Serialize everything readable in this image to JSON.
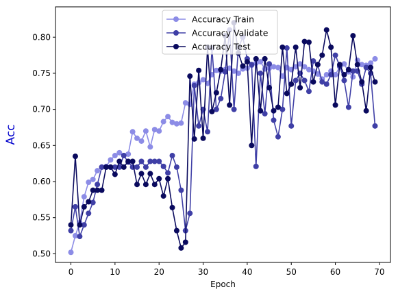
{
  "chart_data": {
    "type": "line",
    "title": "",
    "xlabel": "Epoch",
    "ylabel": "Acc",
    "xlim": [
      -3.5,
      72.5
    ],
    "ylim": [
      0.488,
      0.842
    ],
    "xticks": [
      0,
      10,
      20,
      30,
      40,
      50,
      60,
      70
    ],
    "yticks": [
      0.5,
      0.55,
      0.6,
      0.65,
      0.7,
      0.75,
      0.8
    ],
    "ytick_labels": [
      "0.50",
      "0.55",
      "0.60",
      "0.65",
      "0.70",
      "0.75",
      "0.80"
    ],
    "grid": false,
    "legend_position": "top-center",
    "ylabel_color": "#0000cc",
    "series": [
      {
        "name": "Accuracy Train",
        "color": "#8c8ce6",
        "values": [
          0.502,
          0.525,
          0.543,
          0.579,
          0.599,
          0.603,
          0.615,
          0.62,
          0.621,
          0.63,
          0.636,
          0.64,
          0.636,
          0.638,
          0.669,
          0.66,
          0.656,
          0.67,
          0.648,
          0.672,
          0.67,
          0.683,
          0.69,
          0.682,
          0.68,
          0.681,
          0.709,
          0.707,
          0.735,
          0.737,
          0.741,
          0.736,
          0.748,
          0.754,
          0.753,
          0.755,
          0.757,
          0.753,
          0.75,
          0.756,
          0.757,
          0.761,
          0.764,
          0.766,
          0.756,
          0.757,
          0.759,
          0.758,
          0.746,
          0.758,
          0.755,
          0.759,
          0.763,
          0.759,
          0.755,
          0.753,
          0.749,
          0.742,
          0.748,
          0.753,
          0.748,
          0.759,
          0.763,
          0.752,
          0.745,
          0.768,
          0.762,
          0.761,
          0.764,
          0.77
        ]
      },
      {
        "name": "Accuracy Validate",
        "color": "#3f3fa6",
        "values": [
          0.532,
          0.565,
          0.524,
          0.54,
          0.556,
          0.571,
          0.596,
          0.62,
          0.62,
          0.62,
          0.62,
          0.62,
          0.636,
          0.627,
          0.62,
          0.62,
          0.628,
          0.62,
          0.628,
          0.628,
          0.628,
          0.621,
          0.612,
          0.636,
          0.62,
          0.588,
          0.532,
          0.556,
          0.733,
          0.677,
          0.7,
          0.669,
          0.785,
          0.7,
          0.715,
          0.752,
          0.81,
          0.7,
          0.785,
          0.8,
          0.77,
          0.762,
          0.621,
          0.75,
          0.694,
          0.763,
          0.685,
          0.662,
          0.7,
          0.785,
          0.677,
          0.74,
          0.75,
          0.74,
          0.725,
          0.767,
          0.762,
          0.738,
          0.735,
          0.748,
          0.775,
          0.76,
          0.74,
          0.703,
          0.753,
          0.753,
          0.735,
          0.758,
          0.75,
          0.677
        ]
      },
      {
        "name": "Accuracy Test",
        "color": "#0a0a5e",
        "values": [
          0.54,
          0.635,
          0.54,
          0.565,
          0.572,
          0.588,
          0.588,
          0.588,
          0.62,
          0.62,
          0.61,
          0.628,
          0.62,
          0.628,
          0.628,
          0.596,
          0.611,
          0.596,
          0.611,
          0.596,
          0.604,
          0.58,
          0.604,
          0.564,
          0.532,
          0.508,
          0.516,
          0.746,
          0.659,
          0.754,
          0.66,
          0.786,
          0.697,
          0.723,
          0.755,
          0.802,
          0.706,
          0.82,
          0.778,
          0.76,
          0.766,
          0.65,
          0.77,
          0.698,
          0.77,
          0.73,
          0.698,
          0.703,
          0.786,
          0.722,
          0.735,
          0.786,
          0.73,
          0.794,
          0.793,
          0.738,
          0.762,
          0.775,
          0.81,
          0.786,
          0.706,
          0.762,
          0.748,
          0.755,
          0.802,
          0.762,
          0.738,
          0.698,
          0.758,
          0.738
        ]
      }
    ]
  }
}
